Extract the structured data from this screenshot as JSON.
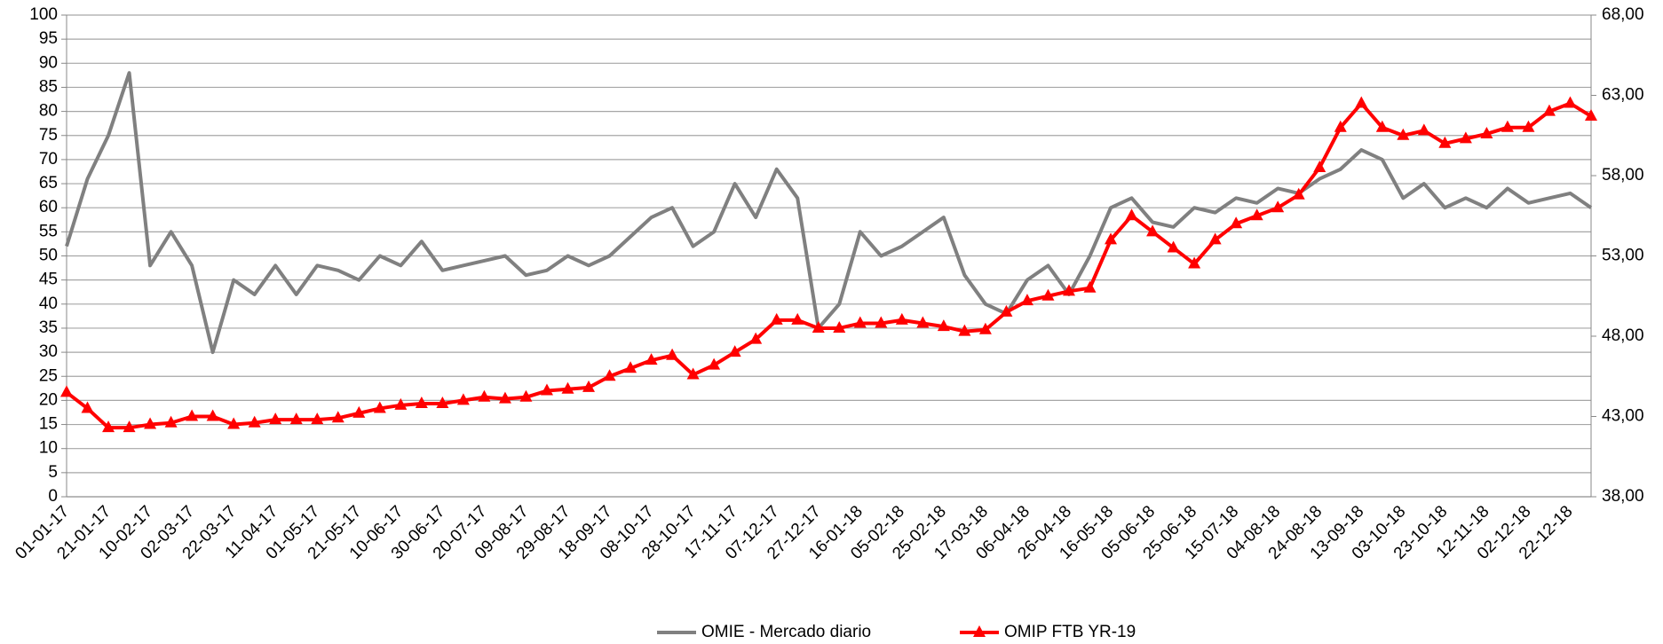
{
  "chart_data": {
    "type": "line",
    "categories": [
      "01-01-17",
      null,
      "21-01-17",
      null,
      "10-02-17",
      null,
      "02-03-17",
      null,
      "22-03-17",
      null,
      "11-04-17",
      null,
      "01-05-17",
      null,
      "21-05-17",
      null,
      "10-06-17",
      null,
      "30-06-17",
      null,
      "20-07-17",
      null,
      "09-08-17",
      null,
      "29-08-17",
      null,
      "18-09-17",
      null,
      "08-10-17",
      null,
      "28-10-17",
      null,
      "17-11-17",
      null,
      "07-12-17",
      null,
      "27-12-17",
      null,
      "16-01-18",
      null,
      "05-02-18",
      null,
      "25-02-18",
      null,
      "17-03-18",
      null,
      "06-04-18",
      null,
      "26-04-18",
      null,
      "16-05-18",
      null,
      "05-06-18",
      null,
      "25-06-18",
      null,
      "15-07-18",
      null,
      "04-08-18",
      null,
      "24-08-18",
      null,
      "13-09-18",
      null,
      "03-10-18",
      null,
      "23-10-18",
      null,
      "12-11-18",
      null,
      "02-12-18",
      null,
      "22-12-18",
      null
    ],
    "series": [
      {
        "name": "OMIE - Mercado diario",
        "color": "#808080",
        "axis": "y",
        "values": [
          52,
          66,
          75,
          88,
          48,
          55,
          48,
          30,
          45,
          42,
          48,
          42,
          48,
          47,
          45,
          50,
          48,
          53,
          47,
          48,
          49,
          50,
          46,
          47,
          50,
          48,
          50,
          54,
          58,
          60,
          52,
          55,
          65,
          58,
          68,
          62,
          35,
          40,
          55,
          50,
          52,
          55,
          58,
          46,
          40,
          38,
          45,
          48,
          42,
          50,
          60,
          62,
          57,
          56,
          60,
          59,
          62,
          61,
          64,
          63,
          66,
          68,
          72,
          70,
          62,
          65,
          60,
          62,
          60,
          64,
          61,
          62,
          63,
          60
        ]
      },
      {
        "name": "OMIP FTB YR-19",
        "color": "#ff0000",
        "axis": "y2",
        "values": [
          44.5,
          43.5,
          42.3,
          42.3,
          42.5,
          42.6,
          43,
          43,
          42.5,
          42.6,
          42.8,
          42.8,
          42.8,
          42.9,
          43.2,
          43.5,
          43.7,
          43.8,
          43.8,
          44,
          44.2,
          44.1,
          44.2,
          44.6,
          44.7,
          44.8,
          45.5,
          46,
          46.5,
          46.8,
          45.6,
          46.2,
          47,
          47.8,
          49,
          49,
          48.5,
          48.5,
          48.8,
          48.8,
          49,
          48.8,
          48.6,
          48.3,
          48.4,
          49.5,
          50.2,
          50.5,
          50.8,
          51,
          54,
          55.5,
          54.5,
          53.5,
          52.5,
          54,
          55,
          55.5,
          56,
          56.8,
          58.5,
          61,
          62.5,
          61,
          60.5,
          60.8,
          60,
          60.3,
          60.6,
          61,
          61,
          62,
          62.5,
          61.7
        ]
      }
    ],
    "ylim": [
      0,
      100
    ],
    "yticks": [
      0,
      5,
      10,
      15,
      20,
      25,
      30,
      35,
      40,
      45,
      50,
      55,
      60,
      65,
      70,
      75,
      80,
      85,
      90,
      95,
      100
    ],
    "y2lim": [
      38,
      68
    ],
    "y2ticks": [
      {
        "value": 38,
        "label": "38,00"
      },
      {
        "value": 43,
        "label": "43,00"
      },
      {
        "value": 48,
        "label": "48,00"
      },
      {
        "value": 53,
        "label": "53,00"
      },
      {
        "value": 58,
        "label": "58,00"
      },
      {
        "value": 63,
        "label": "63,00"
      },
      {
        "value": 68,
        "label": "68,00"
      }
    ],
    "y2color": "#cc0000",
    "grid": true,
    "legend": "bottom"
  }
}
